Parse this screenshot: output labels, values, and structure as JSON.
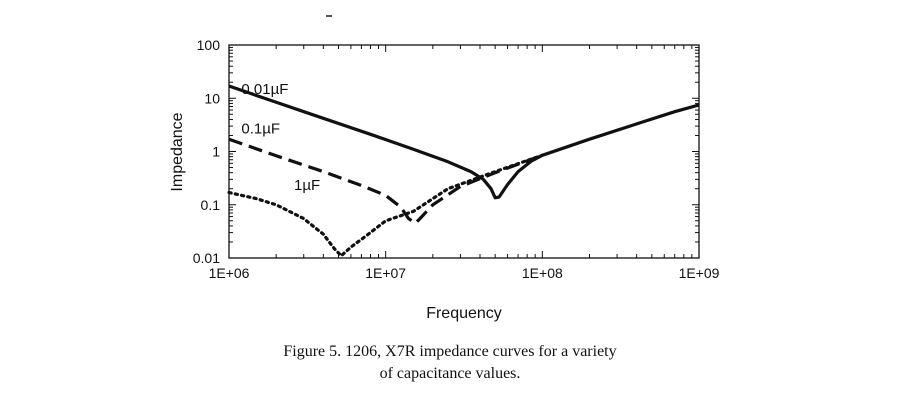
{
  "caption": {
    "line1": "Figure 5. 1206, X7R impedance curves for a variety",
    "line2": "of capacitance values."
  },
  "chart_data": {
    "type": "line",
    "title": "",
    "xlabel": "Frequency",
    "ylabel": "Impedance",
    "xscale": "log",
    "yscale": "log",
    "xlim": [
      1000000,
      1000000000
    ],
    "ylim": [
      0.01,
      100
    ],
    "x_ticks": [
      {
        "value": 1000000,
        "label": "1E+06"
      },
      {
        "value": 10000000,
        "label": "1E+07"
      },
      {
        "value": 100000000,
        "label": "1E+08"
      },
      {
        "value": 1000000000,
        "label": "1E+09"
      }
    ],
    "y_ticks": [
      {
        "value": 0.01,
        "label": "0.01"
      },
      {
        "value": 0.1,
        "label": "0.1"
      },
      {
        "value": 1,
        "label": "1"
      },
      {
        "value": 10,
        "label": "10"
      },
      {
        "value": 100,
        "label": "100"
      }
    ],
    "grid": false,
    "legend": "inline labels",
    "series": [
      {
        "name": "0.01µF",
        "style": "solid",
        "label_at": [
          1200000,
          12
        ],
        "points": [
          [
            1000000,
            17
          ],
          [
            2000000,
            8.4
          ],
          [
            4000000,
            4.2
          ],
          [
            8000000,
            2.1
          ],
          [
            15000000,
            1.1
          ],
          [
            25000000,
            0.64
          ],
          [
            35000000,
            0.42
          ],
          [
            42000000,
            0.3
          ],
          [
            47000000,
            0.2
          ],
          [
            50000000,
            0.135
          ],
          [
            53000000,
            0.14
          ],
          [
            60000000,
            0.24
          ],
          [
            70000000,
            0.42
          ],
          [
            85000000,
            0.66
          ],
          [
            100000000,
            0.85
          ],
          [
            200000000,
            1.7
          ],
          [
            400000000,
            3.3
          ],
          [
            700000000,
            5.6
          ],
          [
            1000000000,
            7.5
          ]
        ]
      },
      {
        "name": "0.1µF",
        "style": "dashed",
        "label_at": [
          1200000,
          2.2
        ],
        "points": [
          [
            1000000,
            1.7
          ],
          [
            2000000,
            0.83
          ],
          [
            4000000,
            0.42
          ],
          [
            7000000,
            0.23
          ],
          [
            10000000,
            0.15
          ],
          [
            12500000,
            0.09
          ],
          [
            14000000,
            0.055
          ],
          [
            15500000,
            0.045
          ],
          [
            17000000,
            0.06
          ],
          [
            20000000,
            0.1
          ],
          [
            30000000,
            0.22
          ],
          [
            50000000,
            0.4
          ],
          [
            100000000,
            0.85
          ]
        ]
      },
      {
        "name": "1µF",
        "style": "dotted",
        "label_at": [
          2600000,
          0.19
        ],
        "points": [
          [
            1000000,
            0.17
          ],
          [
            1500000,
            0.13
          ],
          [
            2000000,
            0.1
          ],
          [
            3000000,
            0.055
          ],
          [
            4000000,
            0.028
          ],
          [
            4700000,
            0.015
          ],
          [
            5200000,
            0.011
          ],
          [
            6000000,
            0.016
          ],
          [
            7500000,
            0.026
          ],
          [
            10000000,
            0.05
          ],
          [
            15000000,
            0.075
          ],
          [
            25000000,
            0.2
          ],
          [
            50000000,
            0.42
          ],
          [
            100000000,
            0.85
          ]
        ]
      }
    ]
  }
}
